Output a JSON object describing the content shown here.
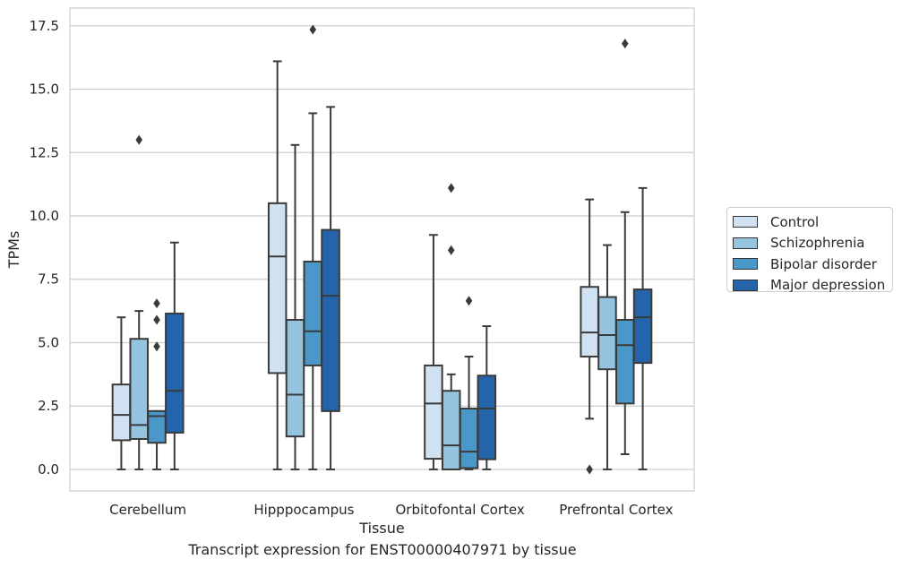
{
  "chart_data": {
    "type": "box",
    "title": "",
    "xlabel": "Tissue",
    "ylabel": "TPMs",
    "caption": "Transcript expression for ENST00000407971 by tissue",
    "ylim": [
      -0.85,
      18.2
    ],
    "yticks": [
      "0.0",
      "2.5",
      "5.0",
      "7.5",
      "10.0",
      "12.5",
      "15.0",
      "17.5"
    ],
    "ytick_values": [
      0,
      2.5,
      5,
      7.5,
      10,
      12.5,
      15,
      17.5
    ],
    "grid": "horizontal",
    "legend_position": "right",
    "categories": [
      "Cerebellum",
      "Hipppocampus",
      "Orbitofontal Cortex",
      "Prefrontal Cortex"
    ],
    "series": [
      {
        "name": "Control",
        "color": "#d0e1f2",
        "boxes": [
          {
            "whislo": 0,
            "q1": 1.15,
            "med": 2.15,
            "q3": 3.35,
            "whishi": 6.0,
            "fliers": []
          },
          {
            "whislo": 0,
            "q1": 3.8,
            "med": 8.4,
            "q3": 10.5,
            "whishi": 16.1,
            "fliers": []
          },
          {
            "whislo": 0,
            "q1": 0.42,
            "med": 2.6,
            "q3": 4.1,
            "whishi": 9.25,
            "fliers": []
          },
          {
            "whislo": 2.0,
            "q1": 4.45,
            "med": 5.4,
            "q3": 7.2,
            "whishi": 10.65,
            "fliers": [
              0
            ]
          }
        ]
      },
      {
        "name": "Schizophrenia",
        "color": "#94c4df",
        "boxes": [
          {
            "whislo": 0,
            "q1": 1.2,
            "med": 1.75,
            "q3": 5.15,
            "whishi": 6.25,
            "fliers": [
              13.0
            ]
          },
          {
            "whislo": 0,
            "q1": 1.3,
            "med": 2.95,
            "q3": 5.9,
            "whishi": 12.8,
            "fliers": []
          },
          {
            "whislo": 0,
            "q1": 0,
            "med": 0.95,
            "q3": 3.1,
            "whishi": 3.75,
            "fliers": [
              8.65,
              11.1
            ]
          },
          {
            "whislo": 0,
            "q1": 3.95,
            "med": 5.3,
            "q3": 6.8,
            "whishi": 8.85,
            "fliers": []
          }
        ]
      },
      {
        "name": "Bipolar disorder",
        "color": "#4a98c9",
        "boxes": [
          {
            "whislo": 0,
            "q1": 1.05,
            "med": 2.1,
            "q3": 2.3,
            "whishi": 2.3,
            "fliers": [
              4.85,
              5.9,
              6.55
            ]
          },
          {
            "whislo": 0,
            "q1": 4.1,
            "med": 5.45,
            "q3": 8.2,
            "whishi": 14.05,
            "fliers": [
              17.35
            ]
          },
          {
            "whislo": 0,
            "q1": 0.05,
            "med": 0.7,
            "q3": 2.4,
            "whishi": 4.45,
            "fliers": [
              6.65
            ]
          },
          {
            "whislo": 0.6,
            "q1": 2.6,
            "med": 4.9,
            "q3": 5.9,
            "whishi": 10.15,
            "fliers": [
              16.8
            ]
          }
        ]
      },
      {
        "name": "Major depression",
        "color": "#2464ab",
        "boxes": [
          {
            "whislo": 0,
            "q1": 1.45,
            "med": 3.1,
            "q3": 6.15,
            "whishi": 8.95,
            "fliers": []
          },
          {
            "whislo": 0,
            "q1": 2.3,
            "med": 6.85,
            "q3": 9.45,
            "whishi": 14.3,
            "fliers": []
          },
          {
            "whislo": 0,
            "q1": 0.4,
            "med": 2.4,
            "q3": 3.7,
            "whishi": 5.65,
            "fliers": []
          },
          {
            "whislo": 0,
            "q1": 4.2,
            "med": 6.0,
            "q3": 7.1,
            "whishi": 11.1,
            "fliers": []
          }
        ]
      }
    ]
  }
}
